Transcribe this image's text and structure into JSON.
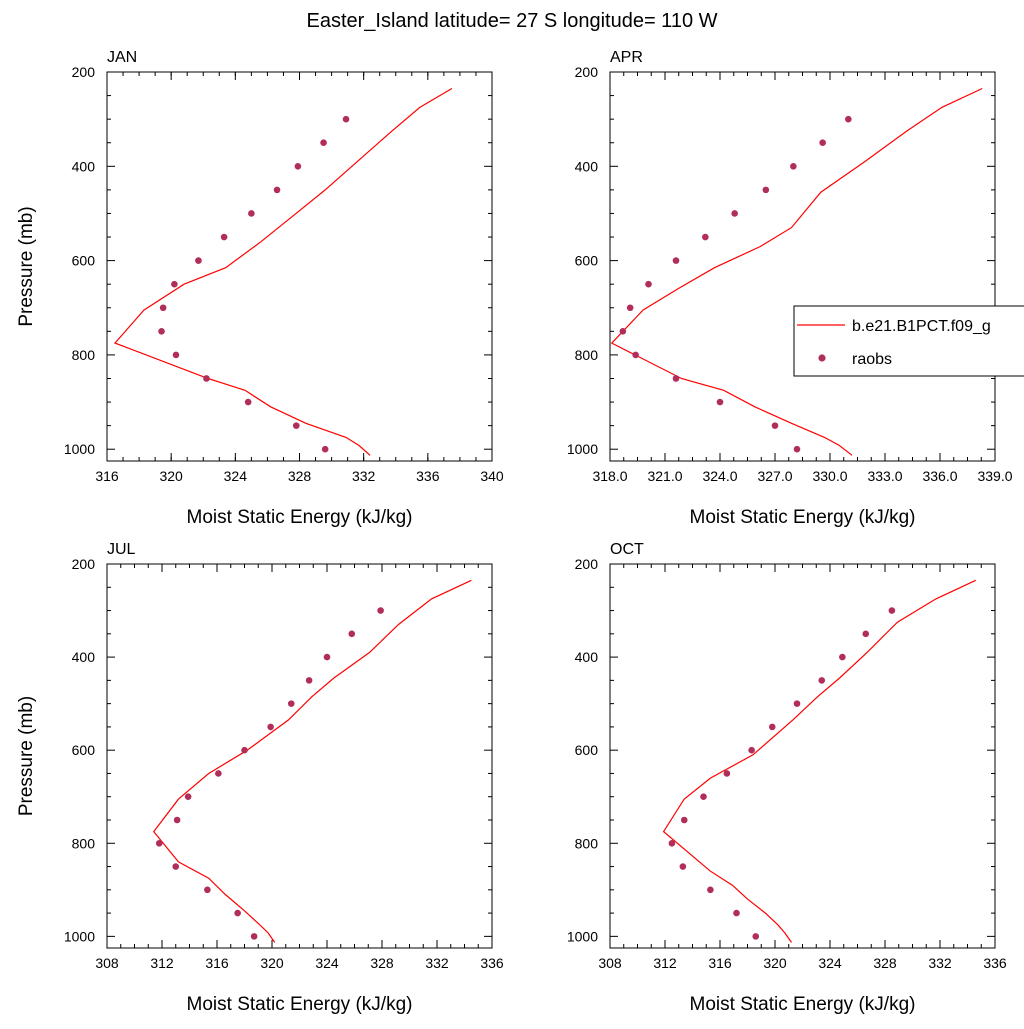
{
  "figure": {
    "title": "Easter_Island  latitude= 27 S longitude= 110 W"
  },
  "legend": {
    "model_label": "b.e21.B1PCT.f09_g",
    "obs_label": "raobs"
  },
  "colors": {
    "model_line": "#ff0000",
    "obs_marker": "#b22e5a"
  },
  "chart_data": [
    {
      "type": "line",
      "panel": "JAN",
      "xlabel": "Moist Static Energy (kJ/kg)",
      "ylabel": "Pressure (mb)",
      "xlim": [
        316,
        340
      ],
      "ylim": [
        1025,
        200
      ],
      "xticks": [
        316,
        320,
        324,
        328,
        332,
        336,
        340
      ],
      "xtick_labels": [
        "316",
        "320",
        "324",
        "328",
        "332",
        "336",
        "340"
      ],
      "yticks": [
        200,
        400,
        600,
        800,
        1000
      ],
      "ytick_labels": [
        "200",
        "400",
        "600",
        "800",
        "1000"
      ],
      "y_inverted": true,
      "series": [
        {
          "name": "b.e21.B1PCT.f09_g",
          "style": "line",
          "x": [
            332.4,
            331.7,
            330.9,
            328.4,
            326.2,
            324.6,
            322.3,
            316.5,
            318.3,
            320.8,
            323.4,
            325.6,
            327.6,
            329.6,
            331.6,
            333.6,
            335.5,
            337.5
          ],
          "y": [
            1013,
            992,
            975,
            945,
            910,
            875,
            850,
            775,
            705,
            650,
            615,
            560,
            505,
            450,
            390,
            330,
            275,
            235
          ]
        },
        {
          "name": "raobs",
          "style": "markers",
          "x": [
            329.6,
            327.8,
            324.8,
            322.2,
            320.3,
            319.4,
            319.5,
            320.2,
            321.7,
            323.3,
            325.0,
            326.6,
            327.9,
            329.5,
            330.9
          ],
          "y": [
            1000,
            950,
            900,
            850,
            800,
            750,
            700,
            650,
            600,
            550,
            500,
            450,
            400,
            350,
            300
          ]
        }
      ]
    },
    {
      "type": "line",
      "panel": "APR",
      "xlabel": "Moist Static Energy (kJ/kg)",
      "ylabel": "",
      "xlim": [
        318,
        339
      ],
      "ylim": [
        1025,
        200
      ],
      "xticks": [
        318,
        321,
        324,
        327,
        330,
        333,
        336,
        339
      ],
      "xtick_labels": [
        "318.0",
        "321.0",
        "324.0",
        "327.0",
        "330.0",
        "333.0",
        "336.0",
        "339.0"
      ],
      "yticks": [
        200,
        400,
        600,
        800,
        1000
      ],
      "ytick_labels": [
        "200",
        "400",
        "600",
        "800",
        "1000"
      ],
      "y_inverted": true,
      "series": [
        {
          "name": "b.e21.B1PCT.f09_g",
          "style": "line",
          "x": [
            331.2,
            330.5,
            329.7,
            327.9,
            325.9,
            324.2,
            321.9,
            318.1,
            319.8,
            321.7,
            323.7,
            326.2,
            327.9,
            329.5,
            331.9,
            334.2,
            336.1,
            338.3
          ],
          "y": [
            1013,
            992,
            975,
            945,
            910,
            875,
            850,
            775,
            705,
            660,
            615,
            570,
            530,
            455,
            390,
            325,
            275,
            235
          ]
        },
        {
          "name": "raobs",
          "style": "markers",
          "x": [
            328.2,
            327.0,
            324.0,
            321.6,
            319.4,
            318.7,
            319.1,
            320.1,
            321.6,
            323.2,
            324.8,
            326.5,
            328.0,
            329.6,
            331.0
          ],
          "y": [
            1000,
            950,
            900,
            850,
            800,
            750,
            700,
            650,
            600,
            550,
            500,
            450,
            400,
            350,
            300
          ]
        }
      ]
    },
    {
      "type": "line",
      "panel": "JUL",
      "xlabel": "Moist Static Energy (kJ/kg)",
      "ylabel": "Pressure (mb)",
      "xlim": [
        308,
        336
      ],
      "ylim": [
        1025,
        200
      ],
      "xticks": [
        308,
        312,
        316,
        320,
        324,
        328,
        332,
        336
      ],
      "xtick_labels": [
        "308",
        "312",
        "316",
        "320",
        "324",
        "328",
        "332",
        "336"
      ],
      "yticks": [
        200,
        400,
        600,
        800,
        1000
      ],
      "ytick_labels": [
        "200",
        "400",
        "600",
        "800",
        "1000"
      ],
      "y_inverted": true,
      "series": [
        {
          "name": "b.e21.B1PCT.f09_g",
          "style": "line",
          "x": [
            320.2,
            319.7,
            319.1,
            318.0,
            316.6,
            315.4,
            313.2,
            311.4,
            313.2,
            315.4,
            318.2,
            321.2,
            322.9,
            324.5,
            327.1,
            329.2,
            331.6,
            334.5
          ],
          "y": [
            1013,
            992,
            975,
            945,
            910,
            875,
            840,
            775,
            705,
            650,
            600,
            535,
            485,
            445,
            390,
            330,
            275,
            235
          ]
        },
        {
          "name": "raobs",
          "style": "markers",
          "x": [
            318.7,
            317.5,
            315.3,
            313.0,
            311.8,
            313.1,
            313.9,
            316.1,
            318.0,
            319.9,
            321.4,
            322.7,
            324.0,
            325.8,
            327.9
          ],
          "y": [
            1000,
            950,
            900,
            850,
            800,
            750,
            700,
            650,
            600,
            550,
            500,
            450,
            400,
            350,
            300
          ]
        }
      ]
    },
    {
      "type": "line",
      "panel": "OCT",
      "xlabel": "Moist Static Energy (kJ/kg)",
      "ylabel": "",
      "xlim": [
        308,
        336
      ],
      "ylim": [
        1025,
        200
      ],
      "xticks": [
        308,
        312,
        316,
        320,
        324,
        328,
        332,
        336
      ],
      "xtick_labels": [
        "308",
        "312",
        "316",
        "320",
        "324",
        "328",
        "332",
        "336"
      ],
      "yticks": [
        200,
        400,
        600,
        800,
        1000
      ],
      "ytick_labels": [
        "200",
        "400",
        "600",
        "800",
        "1000"
      ],
      "y_inverted": true,
      "series": [
        {
          "name": "b.e21.B1PCT.f09_g",
          "style": "line",
          "x": [
            321.2,
            320.7,
            320.2,
            319.3,
            318.0,
            316.9,
            315.3,
            311.9,
            313.4,
            315.3,
            318.4,
            321.3,
            323.1,
            324.7,
            326.7,
            328.9,
            331.7,
            334.6
          ],
          "y": [
            1013,
            992,
            975,
            950,
            920,
            890,
            860,
            775,
            705,
            660,
            610,
            535,
            485,
            445,
            390,
            325,
            275,
            235
          ]
        },
        {
          "name": "raobs",
          "style": "markers",
          "x": [
            318.6,
            317.2,
            315.3,
            313.3,
            312.5,
            313.4,
            314.8,
            316.5,
            318.3,
            319.8,
            321.6,
            323.4,
            324.9,
            326.6,
            328.5
          ],
          "y": [
            1000,
            950,
            900,
            850,
            800,
            750,
            700,
            650,
            600,
            550,
            500,
            450,
            400,
            350,
            300
          ]
        }
      ]
    }
  ]
}
